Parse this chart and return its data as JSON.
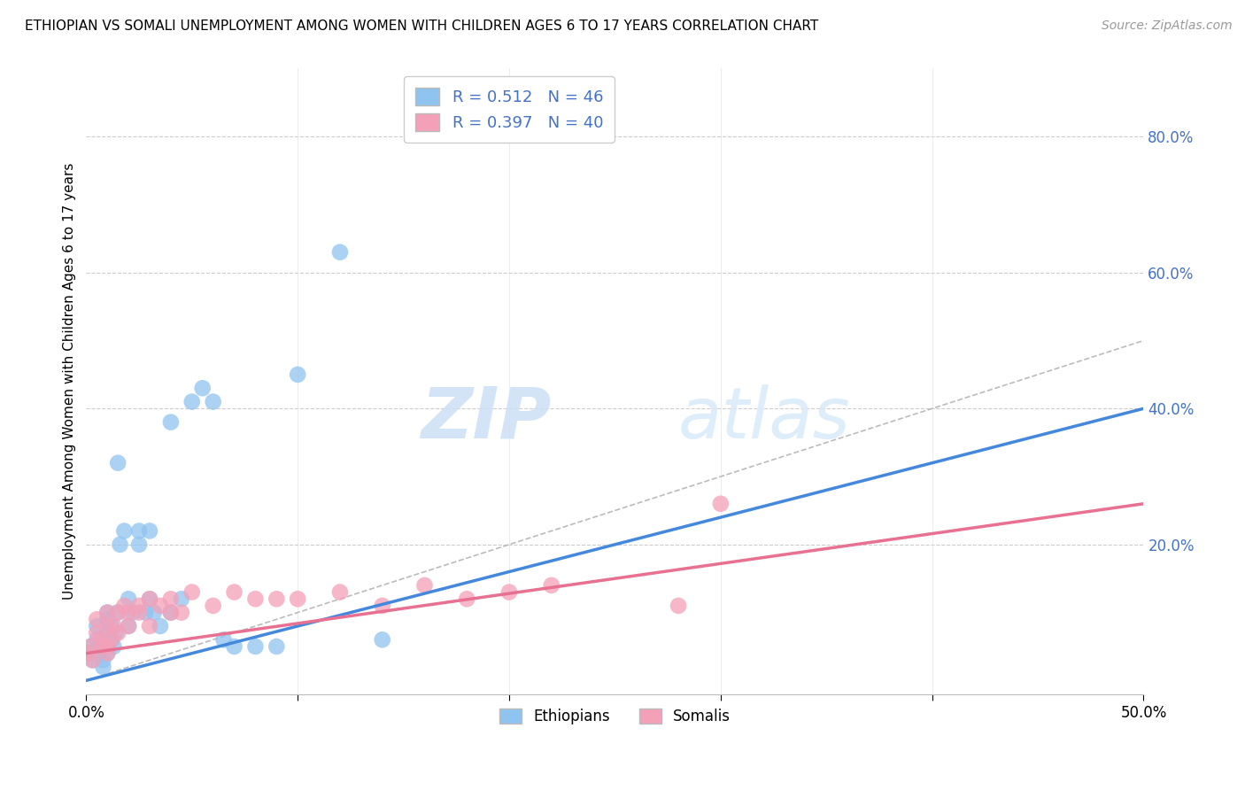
{
  "title": "ETHIOPIAN VS SOMALI UNEMPLOYMENT AMONG WOMEN WITH CHILDREN AGES 6 TO 17 YEARS CORRELATION CHART",
  "source": "Source: ZipAtlas.com",
  "ylabel": "Unemployment Among Women with Children Ages 6 to 17 years",
  "xlim": [
    0.0,
    0.5
  ],
  "ylim": [
    -0.02,
    0.9
  ],
  "xticks": [
    0.0,
    0.1,
    0.2,
    0.3,
    0.4,
    0.5
  ],
  "xticklabels": [
    "0.0%",
    "",
    "",
    "",
    "",
    "50.0%"
  ],
  "ytick_right_vals": [
    0.0,
    0.2,
    0.4,
    0.6,
    0.8
  ],
  "ytick_right_labels": [
    "",
    "20.0%",
    "40.0%",
    "60.0%",
    "80.0%"
  ],
  "blue_color": "#90c4f0",
  "pink_color": "#f4a0b8",
  "blue_line_color": "#4488dd",
  "pink_line_color": "#e87090",
  "blue_line": [
    0.0,
    0.0,
    0.5,
    0.4
  ],
  "pink_line": [
    0.0,
    0.04,
    0.5,
    0.26
  ],
  "bottom_legend_ethiopians": "Ethiopians",
  "bottom_legend_somalis": "Somalis",
  "watermark_zip": "ZIP",
  "watermark_atlas": "atlas",
  "background_color": "#ffffff",
  "ethiopian_x": [
    0.001,
    0.002,
    0.003,
    0.005,
    0.005,
    0.006,
    0.007,
    0.008,
    0.008,
    0.009,
    0.01,
    0.01,
    0.01,
    0.01,
    0.01,
    0.012,
    0.012,
    0.013,
    0.014,
    0.015,
    0.015,
    0.016,
    0.018,
    0.02,
    0.02,
    0.022,
    0.025,
    0.025,
    0.028,
    0.03,
    0.03,
    0.032,
    0.035,
    0.04,
    0.04,
    0.045,
    0.05,
    0.055,
    0.06,
    0.065,
    0.07,
    0.08,
    0.09,
    0.1,
    0.12,
    0.14
  ],
  "ethiopian_y": [
    0.04,
    0.05,
    0.03,
    0.06,
    0.08,
    0.05,
    0.04,
    0.03,
    0.02,
    0.05,
    0.07,
    0.09,
    0.1,
    0.05,
    0.04,
    0.08,
    0.06,
    0.05,
    0.07,
    0.32,
    0.1,
    0.2,
    0.22,
    0.12,
    0.08,
    0.1,
    0.2,
    0.22,
    0.1,
    0.22,
    0.12,
    0.1,
    0.08,
    0.38,
    0.1,
    0.12,
    0.41,
    0.43,
    0.41,
    0.06,
    0.05,
    0.05,
    0.05,
    0.45,
    0.63,
    0.06
  ],
  "somali_x": [
    0.001,
    0.002,
    0.003,
    0.005,
    0.005,
    0.007,
    0.008,
    0.01,
    0.01,
    0.01,
    0.01,
    0.012,
    0.013,
    0.015,
    0.015,
    0.018,
    0.02,
    0.02,
    0.025,
    0.025,
    0.03,
    0.03,
    0.035,
    0.04,
    0.04,
    0.045,
    0.05,
    0.06,
    0.07,
    0.08,
    0.09,
    0.1,
    0.12,
    0.14,
    0.16,
    0.18,
    0.2,
    0.22,
    0.28,
    0.3
  ],
  "somali_y": [
    0.04,
    0.05,
    0.03,
    0.07,
    0.09,
    0.06,
    0.05,
    0.1,
    0.05,
    0.04,
    0.08,
    0.06,
    0.08,
    0.1,
    0.07,
    0.11,
    0.1,
    0.08,
    0.11,
    0.1,
    0.12,
    0.08,
    0.11,
    0.12,
    0.1,
    0.1,
    0.13,
    0.11,
    0.13,
    0.12,
    0.12,
    0.12,
    0.13,
    0.11,
    0.14,
    0.12,
    0.13,
    0.14,
    0.11,
    0.26
  ]
}
